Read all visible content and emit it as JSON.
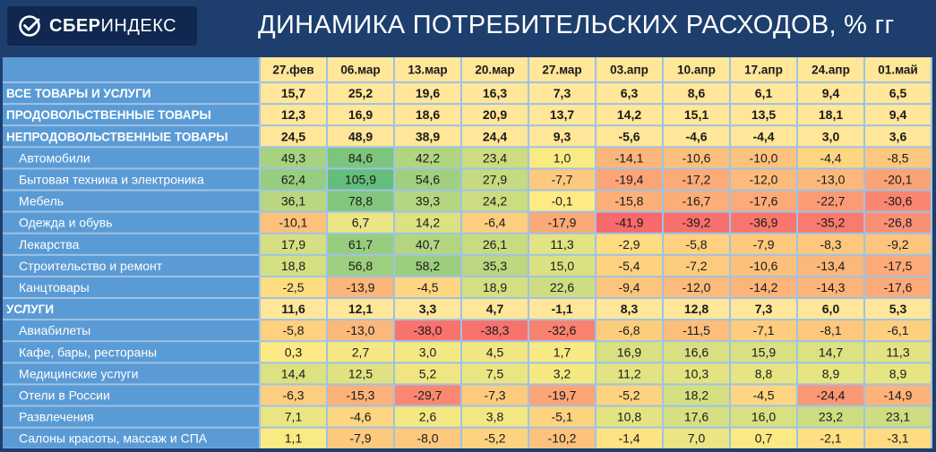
{
  "header": {
    "logo": {
      "brand_bold": "СБЕР",
      "brand_light": "ИНДЕКС",
      "icon": "sber-check-icon"
    },
    "title": "ДИНАМИКА ПОТРЕБИТЕЛЬСКИХ РАСХОДОВ, % гг"
  },
  "chart_data": {
    "type": "heatmap",
    "title": "ДИНАМИКА ПОТРЕБИТЕЛЬСКИХ РАСХОДОВ, % гг",
    "columns": [
      "27.фев",
      "06.мар",
      "13.мар",
      "20.мар",
      "27.мар",
      "03.апр",
      "10.апр",
      "17.апр",
      "24.апр",
      "01.май"
    ],
    "rows": [
      {
        "label": "ВСЕ ТОВАРЫ И УСЛУГИ",
        "kind": "category",
        "values": [
          15.7,
          25.2,
          19.6,
          16.3,
          7.3,
          6.3,
          8.6,
          6.1,
          9.4,
          6.5
        ]
      },
      {
        "label": "ПРОДОВОЛЬСТВЕННЫЕ ТОВАРЫ",
        "kind": "category",
        "values": [
          12.3,
          16.9,
          18.6,
          20.9,
          13.7,
          14.2,
          15.1,
          13.5,
          18.1,
          9.4
        ]
      },
      {
        "label": "НЕПРОДОВОЛЬСТВЕННЫЕ ТОВАРЫ",
        "kind": "category",
        "values": [
          24.5,
          48.9,
          38.9,
          24.4,
          9.3,
          -5.6,
          -4.6,
          -4.4,
          3.0,
          3.6
        ]
      },
      {
        "label": "Автомобили",
        "kind": "sub",
        "values": [
          49.3,
          84.6,
          42.2,
          23.4,
          1.0,
          -14.1,
          -10.6,
          -10.0,
          -4.4,
          -8.5
        ]
      },
      {
        "label": "Бытовая техника и электроника",
        "kind": "sub",
        "values": [
          62.4,
          105.9,
          54.6,
          27.9,
          -7.7,
          -19.4,
          -17.2,
          -12.0,
          -13.0,
          -20.1
        ]
      },
      {
        "label": "Мебель",
        "kind": "sub",
        "values": [
          36.1,
          78.8,
          39.3,
          24.2,
          -0.1,
          -15.8,
          -16.7,
          -17.6,
          -22.7,
          -30.6
        ]
      },
      {
        "label": "Одежда и обувь",
        "kind": "sub",
        "values": [
          -10.1,
          6.7,
          14.2,
          -6.4,
          -17.9,
          -41.9,
          -39.2,
          -36.9,
          -35.2,
          -26.8
        ]
      },
      {
        "label": "Лекарства",
        "kind": "sub",
        "values": [
          17.9,
          61.7,
          40.7,
          26.1,
          11.3,
          -2.9,
          -5.8,
          -7.9,
          -8.3,
          -9.2
        ]
      },
      {
        "label": "Строительство и ремонт",
        "kind": "sub",
        "values": [
          18.8,
          56.8,
          58.2,
          35.3,
          15.0,
          -5.4,
          -7.2,
          -10.6,
          -13.4,
          -17.5
        ]
      },
      {
        "label": "Канцтовары",
        "kind": "sub",
        "values": [
          -2.5,
          -13.9,
          -4.5,
          18.9,
          22.6,
          -9.4,
          -12.0,
          -14.2,
          -14.3,
          -17.6
        ]
      },
      {
        "label": "УСЛУГИ",
        "kind": "category",
        "values": [
          11.6,
          12.1,
          3.3,
          4.7,
          -1.1,
          8.3,
          12.8,
          7.3,
          6.0,
          5.3
        ]
      },
      {
        "label": "Авиабилеты",
        "kind": "sub",
        "values": [
          -5.8,
          -13.0,
          -38.0,
          -38.3,
          -32.6,
          -6.8,
          -11.5,
          -7.1,
          -8.1,
          -6.1
        ]
      },
      {
        "label": "Кафе, бары, рестораны",
        "kind": "sub",
        "values": [
          0.3,
          2.7,
          3.0,
          4.5,
          1.7,
          16.9,
          16.6,
          15.9,
          14.7,
          11.3
        ]
      },
      {
        "label": "Медицинские услуги",
        "kind": "sub",
        "values": [
          14.4,
          12.5,
          5.2,
          7.5,
          3.2,
          11.2,
          10.3,
          8.8,
          8.9,
          8.9
        ]
      },
      {
        "label": "Отели в России",
        "kind": "sub",
        "values": [
          -6.3,
          -15.3,
          -29.7,
          -7.3,
          -19.7,
          -5.2,
          18.2,
          -4.5,
          -24.4,
          -14.9
        ]
      },
      {
        "label": "Развлечения",
        "kind": "sub",
        "values": [
          7.1,
          -4.6,
          2.6,
          3.8,
          -5.1,
          10.8,
          17.6,
          16.0,
          23.2,
          23.1
        ]
      },
      {
        "label": "Салоны красоты, массаж и СПА",
        "kind": "sub",
        "values": [
          1.1,
          -7.9,
          -8.0,
          -5.2,
          -10.2,
          -1.4,
          7.0,
          0.7,
          -2.1,
          -3.1
        ]
      }
    ],
    "colors": {
      "background": "#1e3f6e",
      "table_frame": "#9dc3e6",
      "label_column": "#5b9bd5",
      "category_row": "#ffe699",
      "scale_low": "#f8696b",
      "scale_mid": "#ffeb84",
      "scale_high": "#63be7b"
    }
  }
}
